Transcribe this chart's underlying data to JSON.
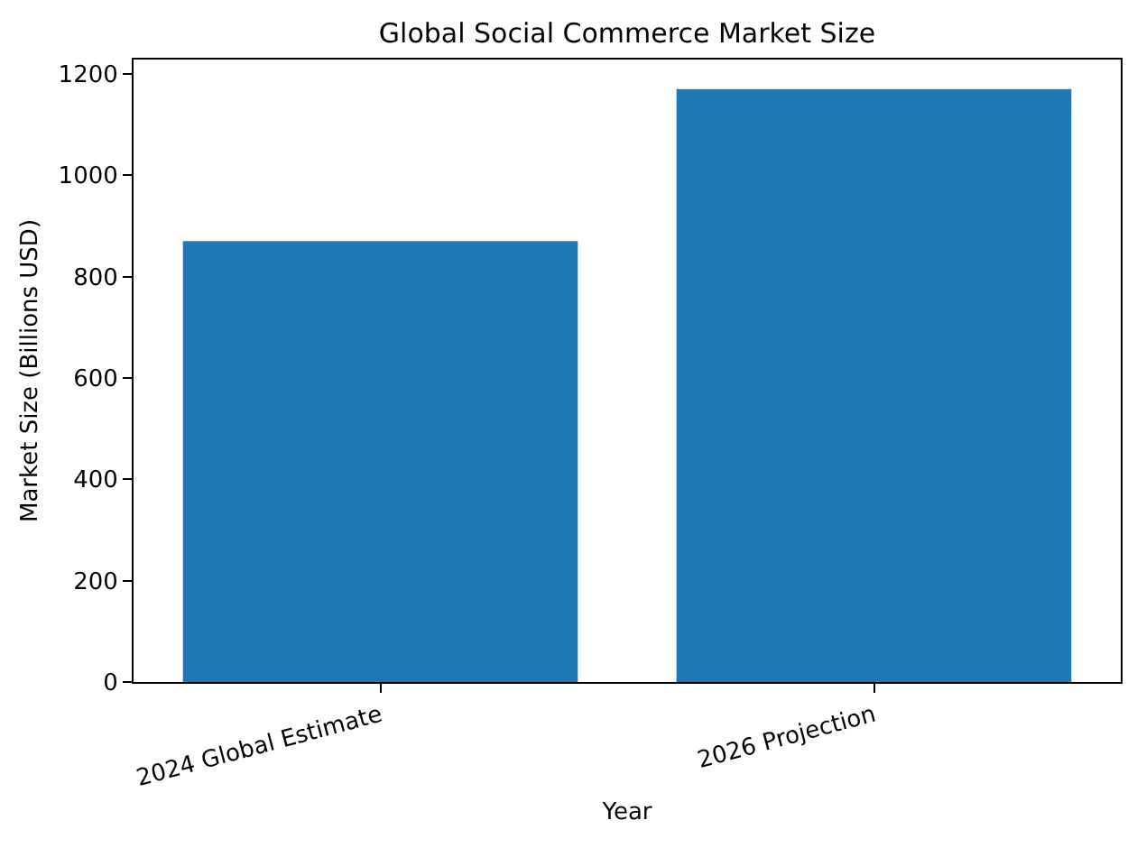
{
  "chart_data": {
    "type": "bar",
    "title": "Global Social Commerce Market Size",
    "xlabel": "Year",
    "ylabel": "Market Size (Billions USD)",
    "categories": [
      "2024 Global Estimate",
      "2026 Projection"
    ],
    "values": [
      870,
      1170
    ],
    "color": "#1f77b4",
    "ylim": [
      0,
      1228.5
    ],
    "yticks": [
      0,
      200,
      400,
      600,
      800,
      1000,
      1200
    ],
    "grid": false
  }
}
